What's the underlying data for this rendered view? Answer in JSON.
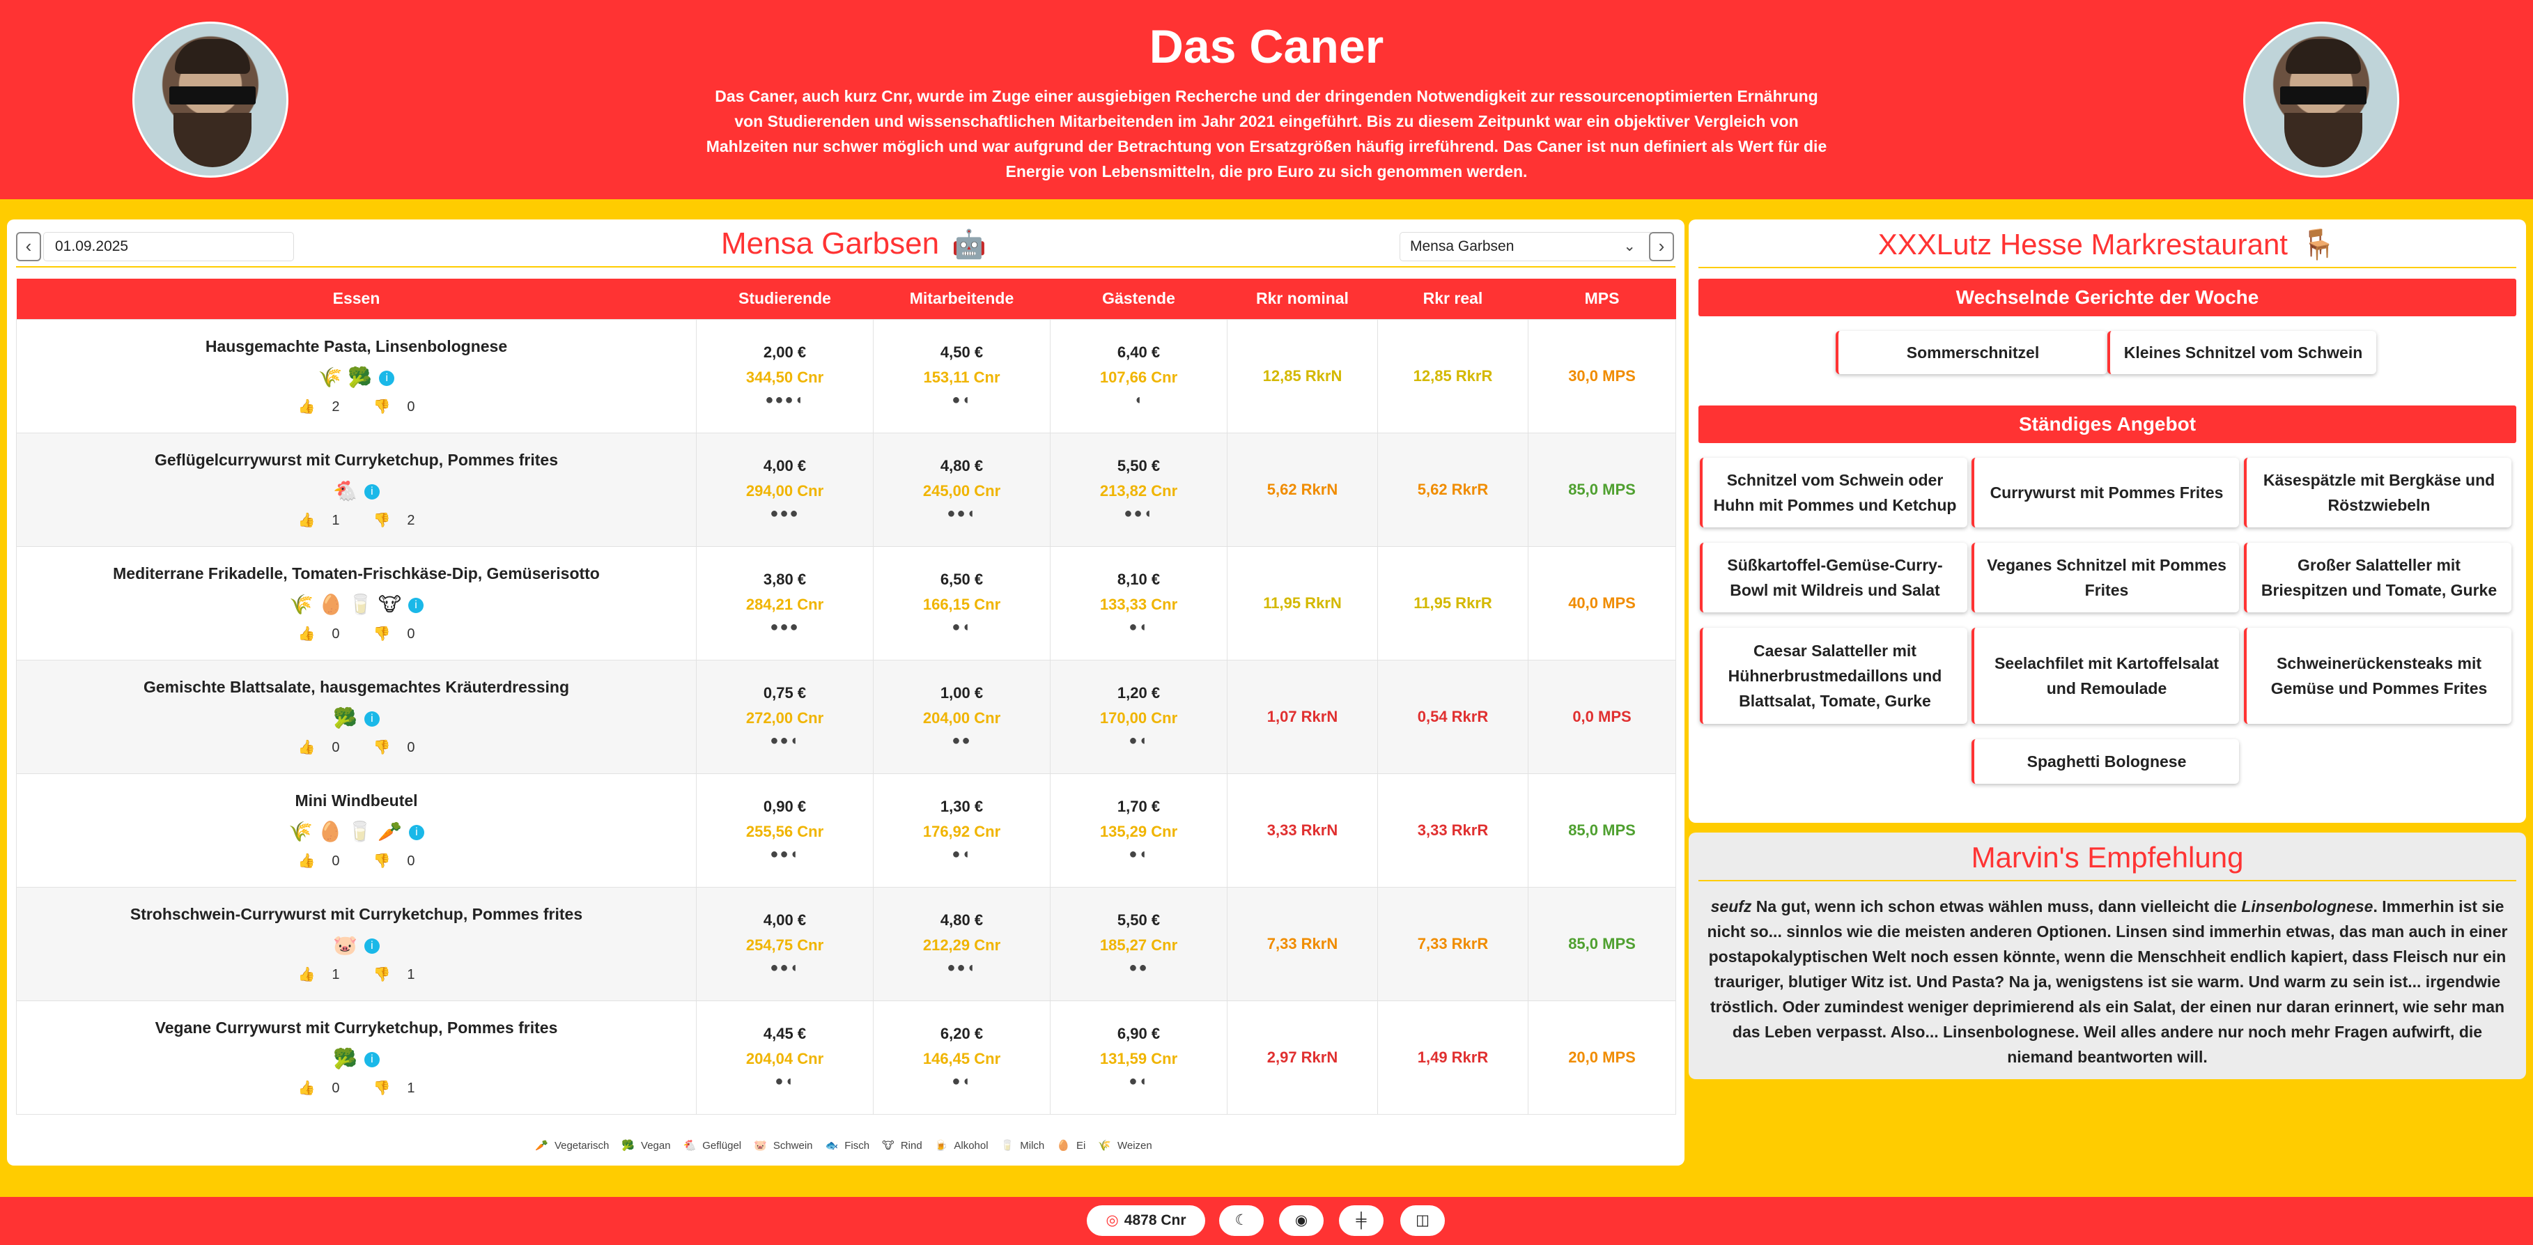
{
  "header": {
    "title": "Das Caner",
    "description": "Das Caner, auch kurz Cnr, wurde im Zuge einer ausgiebigen Recherche und der dringenden Notwendigkeit zur ressourcenoptimierten Ernährung von Studierenden und wissenschaftlichen Mitarbeitenden im Jahr 2021 eingeführt. Bis zu diesem Zeitpunkt war ein objektiver Vergleich von Mahlzeiten nur schwer möglich und war aufgrund der Betrachtung von Ersatzgrößen häufig irreführend. Das Caner ist nun definiert als Wert für die Energie von Lebensmitteln, die pro Euro zu sich genommen werden."
  },
  "controls": {
    "prev": "‹",
    "next": "›",
    "date": "01.09.2025",
    "mensa_title": "Mensa Garbsen",
    "mensa_icon": "🤖",
    "select_value": "Mensa Garbsen",
    "select_chevron": "⌄"
  },
  "table": {
    "headers": [
      "Essen",
      "Studierende",
      "Mitarbeitende",
      "Gästende",
      "Rkr nominal",
      "Rkr real",
      "MPS"
    ],
    "rows": [
      {
        "name": "Hausgemachte Pasta, Linsenbolognese",
        "icons": "🌾 🥦",
        "up": "2",
        "down": "0",
        "s_eur": "2,00 €",
        "s_cnr": "344,50 Cnr",
        "s_heads": "●●●◖",
        "m_eur": "4,50 €",
        "m_cnr": "153,11 Cnr",
        "m_heads": "●◖",
        "g_eur": "6,40 €",
        "g_cnr": "107,66 Cnr",
        "g_heads": "◖",
        "rkr_nom": "12,85 RkrN",
        "rkr_real": "12,85 RkrR",
        "mps": "30,0 MPS",
        "c_nom": "#d4b800",
        "c_real": "#d4b800",
        "c_mps": "#f08c00"
      },
      {
        "name": "Geflügelcurrywurst mit Curryketchup, Pommes frites",
        "icons": "🐔",
        "up": "1",
        "down": "2",
        "s_eur": "4,00 €",
        "s_cnr": "294,00 Cnr",
        "s_heads": "●●●",
        "m_eur": "4,80 €",
        "m_cnr": "245,00 Cnr",
        "m_heads": "●●◖",
        "g_eur": "5,50 €",
        "g_cnr": "213,82 Cnr",
        "g_heads": "●●◖",
        "rkr_nom": "5,62 RkrN",
        "rkr_real": "5,62 RkrR",
        "mps": "85,0 MPS",
        "c_nom": "#f08c00",
        "c_real": "#f08c00",
        "c_mps": "#4fa030"
      },
      {
        "name": "Mediterrane Frikadelle, Tomaten-Frischkäse-Dip, Gemüserisotto",
        "icons": "🌾 🥚 🥛 🐮",
        "up": "0",
        "down": "0",
        "s_eur": "3,80 €",
        "s_cnr": "284,21 Cnr",
        "s_heads": "●●●",
        "m_eur": "6,50 €",
        "m_cnr": "166,15 Cnr",
        "m_heads": "●◖",
        "g_eur": "8,10 €",
        "g_cnr": "133,33 Cnr",
        "g_heads": "●◖",
        "rkr_nom": "11,95 RkrN",
        "rkr_real": "11,95 RkrR",
        "mps": "40,0 MPS",
        "c_nom": "#d4b800",
        "c_real": "#d4b800",
        "c_mps": "#f08c00"
      },
      {
        "name": "Gemischte Blattsalate, hausgemachtes Kräuterdressing",
        "icons": "🥦",
        "up": "0",
        "down": "0",
        "s_eur": "0,75 €",
        "s_cnr": "272,00 Cnr",
        "s_heads": "●●◖",
        "m_eur": "1,00 €",
        "m_cnr": "204,00 Cnr",
        "m_heads": "●●",
        "g_eur": "1,20 €",
        "g_cnr": "170,00 Cnr",
        "g_heads": "●◖",
        "rkr_nom": "1,07 RkrN",
        "rkr_real": "0,54 RkrR",
        "mps": "0,0 MPS",
        "c_nom": "#e03030",
        "c_real": "#e03030",
        "c_mps": "#e03030"
      },
      {
        "name": "Mini Windbeutel",
        "icons": "🌾 🥚 🥛 🥕",
        "up": "0",
        "down": "0",
        "s_eur": "0,90 €",
        "s_cnr": "255,56 Cnr",
        "s_heads": "●●◖",
        "m_eur": "1,30 €",
        "m_cnr": "176,92 Cnr",
        "m_heads": "●◖",
        "g_eur": "1,70 €",
        "g_cnr": "135,29 Cnr",
        "g_heads": "●◖",
        "rkr_nom": "3,33 RkrN",
        "rkr_real": "3,33 RkrR",
        "mps": "85,0 MPS",
        "c_nom": "#e03030",
        "c_real": "#e03030",
        "c_mps": "#4fa030"
      },
      {
        "name": "Strohschwein-Currywurst mit Curryketchup, Pommes frites",
        "icons": "🐷",
        "up": "1",
        "down": "1",
        "s_eur": "4,00 €",
        "s_cnr": "254,75 Cnr",
        "s_heads": "●●◖",
        "m_eur": "4,80 €",
        "m_cnr": "212,29 Cnr",
        "m_heads": "●●◖",
        "g_eur": "5,50 €",
        "g_cnr": "185,27 Cnr",
        "g_heads": "●●",
        "rkr_nom": "7,33 RkrN",
        "rkr_real": "7,33 RkrR",
        "mps": "85,0 MPS",
        "c_nom": "#f08c00",
        "c_real": "#f08c00",
        "c_mps": "#4fa030"
      },
      {
        "name": "Vegane Currywurst mit Curryketchup, Pommes frites",
        "icons": "🥦",
        "up": "0",
        "down": "1",
        "s_eur": "4,45 €",
        "s_cnr": "204,04 Cnr",
        "s_heads": "●◖",
        "m_eur": "6,20 €",
        "m_cnr": "146,45 Cnr",
        "m_heads": "●◖",
        "g_eur": "6,90 €",
        "g_cnr": "131,59 Cnr",
        "g_heads": "●◖",
        "rkr_nom": "2,97 RkrN",
        "rkr_real": "1,49 RkrR",
        "mps": "20,0 MPS",
        "c_nom": "#e03030",
        "c_real": "#e03030",
        "c_mps": "#f08c00"
      }
    ]
  },
  "legend": [
    {
      "icon": "🥕",
      "label": "Vegetarisch"
    },
    {
      "icon": "🥦",
      "label": "Vegan"
    },
    {
      "icon": "🐔",
      "label": "Geflügel"
    },
    {
      "icon": "🐷",
      "label": "Schwein"
    },
    {
      "icon": "🐟",
      "label": "Fisch"
    },
    {
      "icon": "🐮",
      "label": "Rind"
    },
    {
      "icon": "🍺",
      "label": "Alkohol"
    },
    {
      "icon": "🥛",
      "label": "Milch"
    },
    {
      "icon": "🥚",
      "label": "Ei"
    },
    {
      "icon": "🌾",
      "label": "Weizen"
    }
  ],
  "xxxlutz": {
    "title": "XXXLutz Hesse Markrestaurant",
    "icon": "🪑",
    "weekly_title": "Wechselnde Gerichte der Woche",
    "weekly": [
      "Sommerschnitzel",
      "Kleines Schnitzel vom Schwein"
    ],
    "standing_title": "Ständiges Angebot",
    "standing": [
      "Schnitzel vom Schwein oder Huhn mit Pommes und Ketchup",
      "Currywurst mit Pommes Frites",
      "Käsespätzle mit Bergkäse und Röstzwiebeln",
      "Süßkartoffel-Gemüse-Curry-Bowl mit Wildreis und Salat",
      "Veganes Schnitzel mit Pommes Frites",
      "Großer Salatteller mit Briespitzen und Tomate, Gurke",
      "Caesar Salatteller mit Hühnerbrustmedaillons und Blattsalat, Tomate, Gurke",
      "Seelachfilet mit Kartoffelsalat und Remoulade",
      "Schweinerückensteaks mit Gemüse und Pommes Frites",
      "Spaghetti Bolognese"
    ]
  },
  "marvin": {
    "title": "Marvin's Empfehlung",
    "text_intro": "seufz",
    "text_a": " Na gut, wenn ich schon etwas wählen muss, dann vielleicht die ",
    "text_dish": "Linsenbolognese",
    "text_b": ". Immerhin ist sie nicht so... sinnlos wie die meisten anderen Optionen. Linsen sind immerhin etwas, das man auch in einer postapokalyptischen Welt noch essen könnte, wenn die Menschheit endlich kapiert, dass Fleisch nur ein trauriger, blutiger Witz ist. Und Pasta? Na ja, wenigstens ist sie warm. Und warm zu sein ist... irgendwie tröstlich. Oder zumindest weniger deprimierend als ein Salat, der einen nur daran erinnert, wie sehr man das Leben verpasst. Also... Linsenbolognese. Weil alles andere nur noch mehr Fragen aufwirft, die niemand beantworten will."
  },
  "footer": {
    "counter": "4878 Cnr",
    "counter_icon": "◎",
    "theme_icon": "☾",
    "github_icon": "◉",
    "gym_icon": "╪",
    "layout_icon": "◫"
  },
  "colors": {
    "primary": "#ff3333",
    "accent": "#ffcc00",
    "info": "#1ab8e8"
  }
}
